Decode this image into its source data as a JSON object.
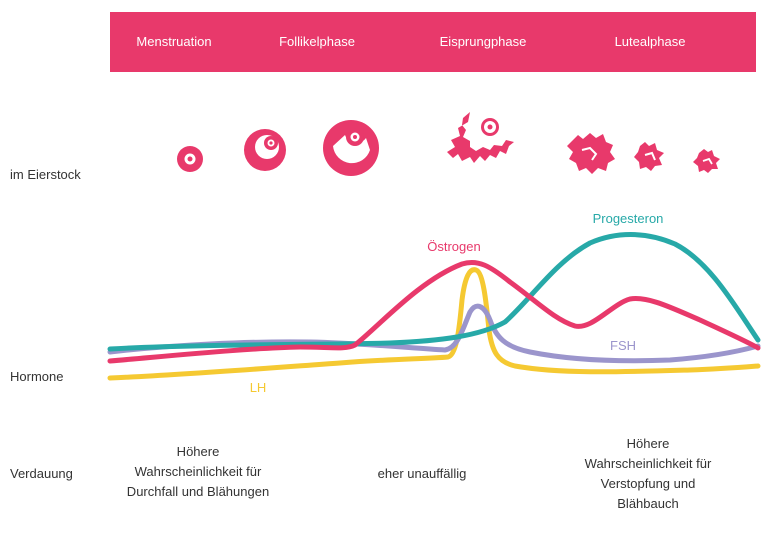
{
  "phases": [
    "Menstruation",
    "Follikelphase",
    "Eisprungphase",
    "Lutealphase"
  ],
  "rows": {
    "ovary": "im Eierstock",
    "hormones": "Hormone",
    "digestion": "Verdauung"
  },
  "hormone_labels": {
    "progesterone": "Progesteron",
    "estrogen": "Östrogen",
    "fsh": "FSH",
    "lh": "LH"
  },
  "digestion": {
    "left": [
      "Höhere",
      "Wahrscheinlichkeit für",
      "Durchfall und Blähungen"
    ],
    "middle": [
      "eher unauffällig"
    ],
    "right": [
      "Höhere",
      "Wahrscheinlichkeit für",
      "Verstopfung und",
      "Blähbauch"
    ]
  },
  "colors": {
    "accent": "#e8396b",
    "progesterone": "#27a9a8",
    "estrogen": "#e8396b",
    "fsh": "#9b95cc",
    "lh": "#f5c932"
  }
}
